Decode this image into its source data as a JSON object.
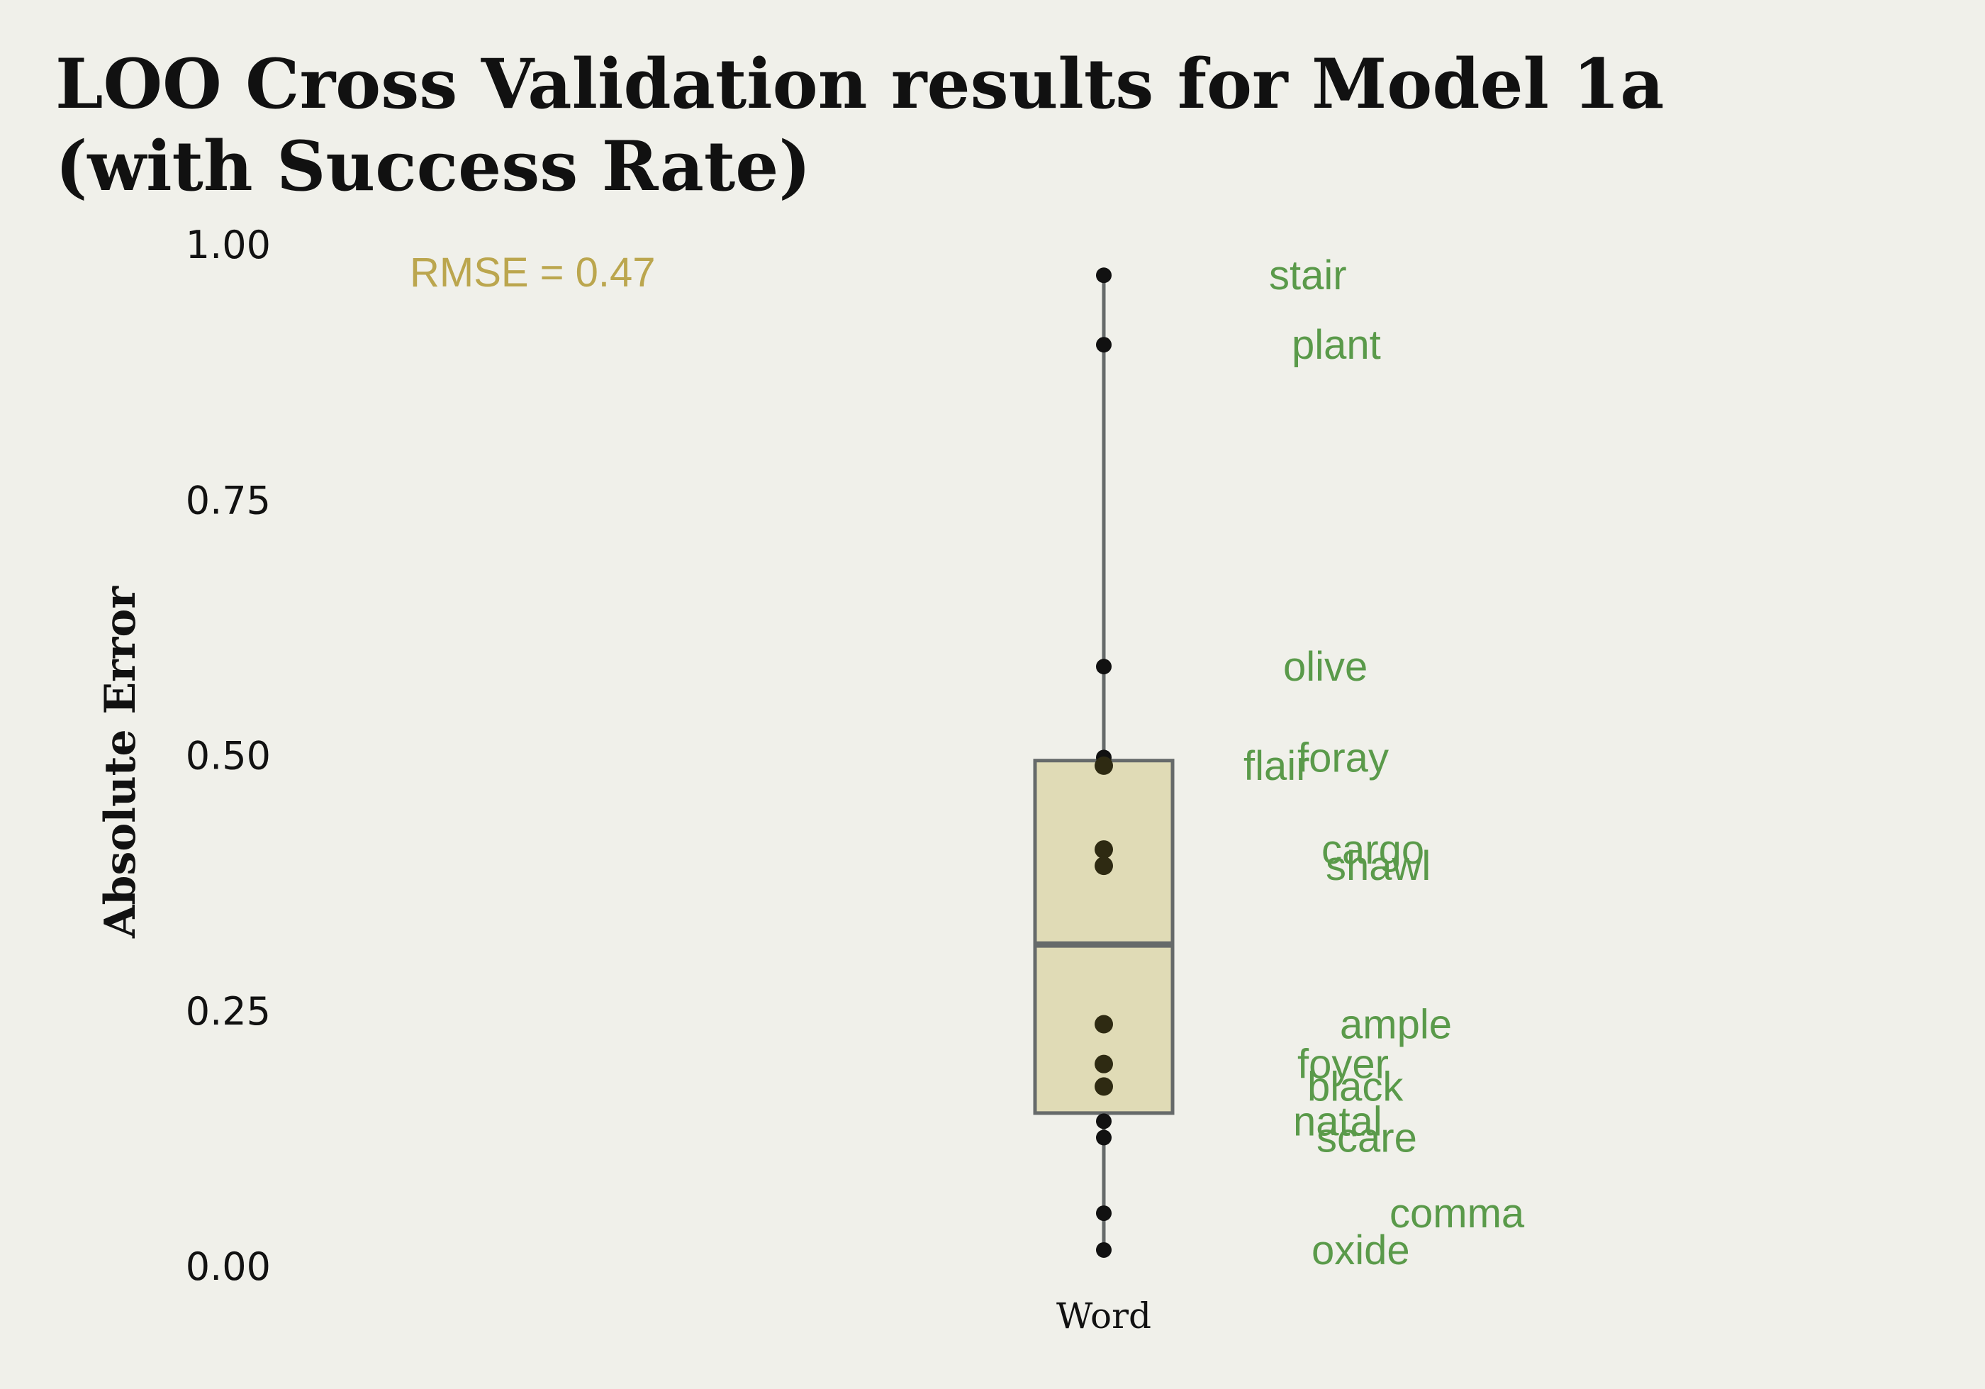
{
  "chart_data": {
    "type": "box",
    "title_lines": [
      "LOO Cross Validation results for Model 1a",
      "(with Success Rate)"
    ],
    "xlabel": "",
    "ylabel": "Absolute Error",
    "ylim": [
      0,
      1
    ],
    "yticks": [
      1.0,
      0.75,
      0.5,
      0.25,
      0.0
    ],
    "ytick_labels": [
      "1.00",
      "0.75",
      "0.50",
      "0.25",
      "0.00"
    ],
    "categories": [
      "Word"
    ],
    "annotation": "RMSE = 0.47",
    "box": {
      "q1": 0.15,
      "median": 0.315,
      "q3": 0.495,
      "whisker_low": 0.015,
      "whisker_high": 0.97
    },
    "points": [
      {
        "word": "stair",
        "value": 0.97
      },
      {
        "word": "plant",
        "value": 0.902
      },
      {
        "word": "olive",
        "value": 0.587
      },
      {
        "word": "foray",
        "value": 0.498
      },
      {
        "word": "flair",
        "value": 0.49
      },
      {
        "word": "cargo",
        "value": 0.408
      },
      {
        "word": "shawl",
        "value": 0.392
      },
      {
        "word": "ample",
        "value": 0.237
      },
      {
        "word": "foyer",
        "value": 0.198
      },
      {
        "word": "black",
        "value": 0.176
      },
      {
        "word": "natal",
        "value": 0.142
      },
      {
        "word": "scare",
        "value": 0.126
      },
      {
        "word": "comma",
        "value": 0.052
      },
      {
        "word": "oxide",
        "value": 0.016
      }
    ],
    "colors": {
      "background": "#f0f0ea",
      "box_fill": "#e0dbb6",
      "box_stroke": "#666a6a",
      "point": "#111111",
      "point_in_box": "#2e2a12",
      "word_label": "#5a9a4a",
      "annotation": "#bba64e"
    }
  }
}
